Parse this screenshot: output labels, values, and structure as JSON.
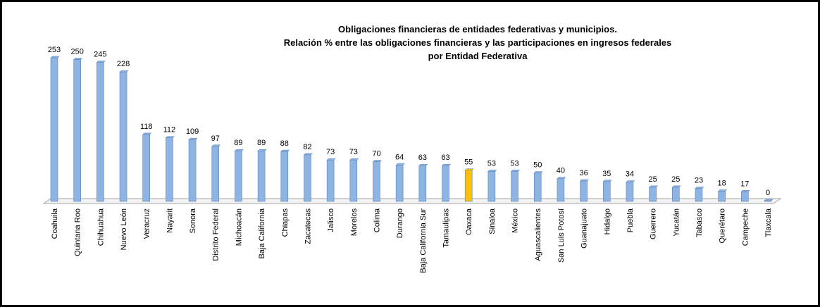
{
  "chart_data": {
    "type": "bar",
    "title": [
      "Obligaciones financieras de entidades federativas y municipios.",
      "Relación % entre las obligaciones financieras y las participaciones en ingresos federales",
      "por Entidad Federativa"
    ],
    "categories": [
      "Coahuila",
      "Quintana Roo",
      "Chihuahua",
      "Nuevo León",
      "Veracruz",
      "Nayarit",
      "Sonora",
      "Distrito Federal",
      "Michoacán",
      "Baja California",
      "Chiapas",
      "Zacatecas",
      "Jalisco",
      "Morelos",
      "Colima",
      "Durango",
      "Baja California Sur",
      "Tamaulipas",
      "Oaxaca",
      "Sinaloa",
      "México",
      "Aguascalientes",
      "San Luis Potosí",
      "Guanajuato",
      "Hidalgo",
      "Puebla",
      "Guerrero",
      "Yucatán",
      "Tabasco",
      "Querétaro",
      "Campeche",
      "Tlaxcala"
    ],
    "values": [
      253,
      250,
      245,
      228,
      118,
      112,
      109,
      97,
      89,
      89,
      88,
      82,
      73,
      73,
      70,
      64,
      63,
      63,
      55,
      53,
      53,
      50,
      40,
      36,
      35,
      34,
      25,
      25,
      23,
      18,
      17,
      0
    ],
    "colors": [
      "#8eb4e3",
      "#8eb4e3",
      "#8eb4e3",
      "#8eb4e3",
      "#8eb4e3",
      "#8eb4e3",
      "#8eb4e3",
      "#8eb4e3",
      "#8eb4e3",
      "#8eb4e3",
      "#8eb4e3",
      "#8eb4e3",
      "#8eb4e3",
      "#8eb4e3",
      "#8eb4e3",
      "#8eb4e3",
      "#8eb4e3",
      "#8eb4e3",
      "#ffc000",
      "#8eb4e3",
      "#8eb4e3",
      "#8eb4e3",
      "#8eb4e3",
      "#8eb4e3",
      "#8eb4e3",
      "#8eb4e3",
      "#8eb4e3",
      "#8eb4e3",
      "#8eb4e3",
      "#8eb4e3",
      "#8eb4e3",
      "#8eb4e3"
    ]
  }
}
